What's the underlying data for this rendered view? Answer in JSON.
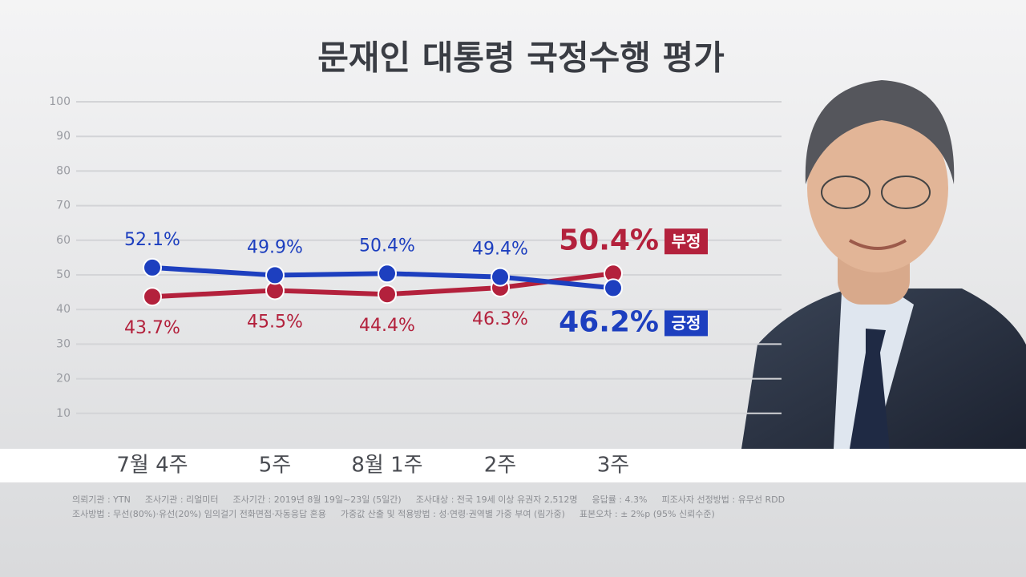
{
  "chart_data": {
    "type": "line",
    "title": "문재인 대통령 국정수행 평가",
    "categories": [
      "7월 4주",
      "5주",
      "8월 1주",
      "2주",
      "3주"
    ],
    "series": [
      {
        "name": "부정",
        "color": "#b3213c",
        "values": [
          43.7,
          45.5,
          44.4,
          46.3,
          50.4
        ],
        "value_labels": [
          "43.7%",
          "45.5%",
          "44.4%",
          "46.3%",
          "50.4%"
        ]
      },
      {
        "name": "긍정",
        "color": "#1d3fbf",
        "values": [
          52.1,
          49.9,
          50.4,
          49.4,
          46.2
        ],
        "value_labels": [
          "52.1%",
          "49.9%",
          "50.4%",
          "49.4%",
          "46.2%"
        ]
      }
    ],
    "ylim": [
      0,
      100
    ],
    "yticks": [
      10,
      20,
      30,
      40,
      50,
      60,
      70,
      80,
      90,
      100
    ],
    "grid": true,
    "footnotes": [
      [
        "의뢰기관 : YTN",
        "조사기관 : 리얼미터",
        "조사기간 : 2019년 8월 19일~23일 (5일간)",
        "조사대상 : 전국 19세 이상 유권자 2,512명",
        "응답률 : 4.3%",
        "피조사자 선정방법 : 유무선 RDD"
      ],
      [
        "조사방법 : 무선(80%)·유선(20%) 임의걸기 전화면접·자동응답 혼용",
        "가중값 산출 및 적용방법 : 성·연령·권역별 가중 부여 (림가중)",
        "표본오차 : ± 2%p (95% 신뢰수준)"
      ]
    ]
  }
}
